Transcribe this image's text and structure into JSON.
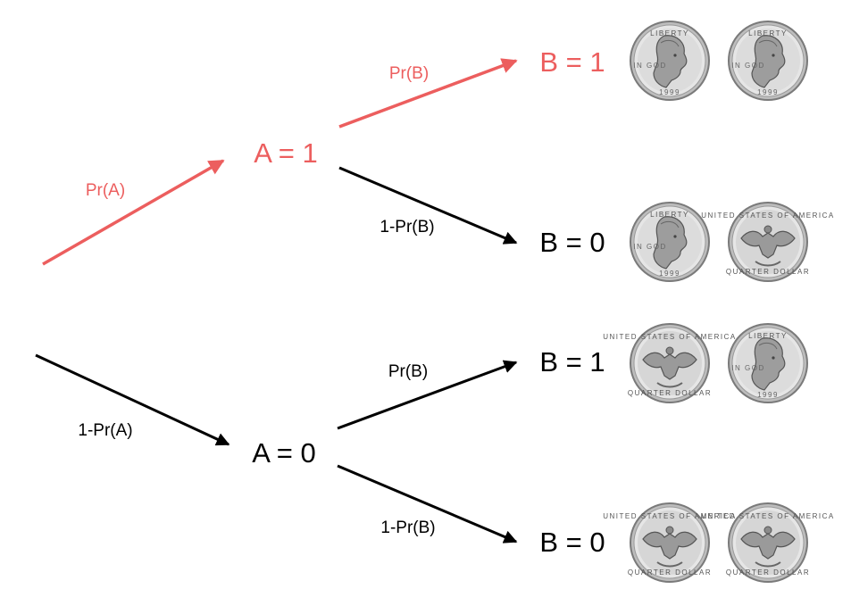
{
  "colors": {
    "highlight": "#ec5e5e",
    "default": "#000000",
    "coin_face": "#dcdcdc",
    "coin_rim": "#8a8a8a"
  },
  "nodes": {
    "a1": "A = 1",
    "a0": "A = 0",
    "a1_b1": "B = 1",
    "a1_b0": "B = 0",
    "a0_b1": "B = 1",
    "a0_b0": "B = 0"
  },
  "edges": {
    "root_a1": "Pr(A)",
    "root_a0": "1-Pr(A)",
    "a1_b1": "Pr(B)",
    "a1_b0": "1-Pr(B)",
    "a0_b1": "Pr(B)",
    "a0_b0": "1-Pr(B)"
  },
  "outcomes": [
    {
      "coin1": "heads",
      "coin2": "heads"
    },
    {
      "coin1": "heads",
      "coin2": "tails"
    },
    {
      "coin1": "tails",
      "coin2": "heads"
    },
    {
      "coin1": "tails",
      "coin2": "tails"
    }
  ],
  "coin_text": {
    "heads_top": "LIBERTY",
    "tails_top": "UNITED STATES OF AMERICA",
    "tails_bottom": "QUARTER DOLLAR"
  }
}
